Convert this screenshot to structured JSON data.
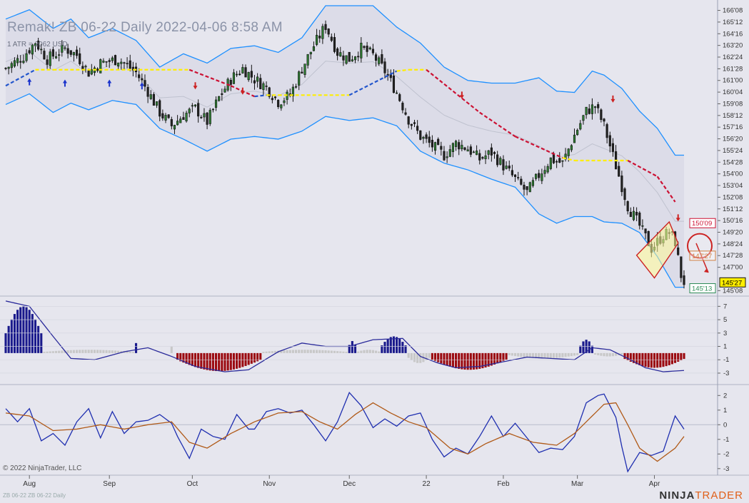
{
  "header": {
    "title": "Remak!  ZB 06-22  Daily  2022-04-06 8:58 AM",
    "subtitle": "1 ATR = 2062 USD"
  },
  "footer": {
    "copyright": "© 2022 NinjaTrader, LLC",
    "instrument_note": "ZB 06-22 ZB 06-22 Daily",
    "brand_prefix": "NINJA",
    "brand_suffix": "TRADER"
  },
  "colors": {
    "bull_candle": "#2e7d32",
    "bear_candle": "#222222",
    "band": "#1e90ff",
    "trend_up": "#2255cc",
    "trend_down": "#cc1133",
    "trend_flat": "#ffee00",
    "hist_blue": "#1a1a8c",
    "hist_red": "#9b0a10",
    "hist_gray": "#c8c8c8",
    "osc_blue": "#1f2fb0",
    "osc_brown": "#b05a18"
  },
  "chart_data": [
    {
      "type": "candlestick",
      "name": "price",
      "y_ticks": [
        "166'08",
        "165'12",
        "164'16",
        "163'20",
        "162'24",
        "161'28",
        "161'00",
        "160'04",
        "159'08",
        "158'12",
        "157'16",
        "156'20",
        "155'24",
        "154'28",
        "154'00",
        "153'04",
        "152'08",
        "151'12",
        "150'16",
        "149'20",
        "148'24",
        "147'28",
        "147'00",
        "145'08"
      ],
      "ylim": [
        145.0,
        166.6
      ],
      "x_ticks": [
        "Aug",
        "Sep",
        "Oct",
        "Nov",
        "Dec",
        "22",
        "Feb",
        "Mar",
        "Apr"
      ],
      "price_labels": {
        "last": "145'27",
        "high_mark": "150'09",
        "mid_mark": "147'27",
        "low_mark": "145'13"
      },
      "close_path": [
        [
          0,
          161.9
        ],
        [
          6,
          162.8
        ],
        [
          10,
          163.9
        ],
        [
          14,
          162.6
        ],
        [
          20,
          163.4
        ],
        [
          24,
          162.9
        ],
        [
          28,
          161.6
        ],
        [
          32,
          162.3
        ],
        [
          38,
          162.6
        ],
        [
          44,
          161.6
        ],
        [
          48,
          160.2
        ],
        [
          52,
          158.6
        ],
        [
          56,
          157.6
        ],
        [
          60,
          158.4
        ],
        [
          64,
          158.9
        ],
        [
          68,
          157.9
        ],
        [
          72,
          159.7
        ],
        [
          76,
          161.1
        ],
        [
          80,
          161.9
        ],
        [
          84,
          161.1
        ],
        [
          88,
          160.5
        ],
        [
          92,
          159.4
        ],
        [
          96,
          159.9
        ],
        [
          100,
          161.9
        ],
        [
          104,
          163.6
        ],
        [
          108,
          165.1
        ],
        [
          112,
          163.1
        ],
        [
          116,
          162.6
        ],
        [
          120,
          163.4
        ],
        [
          124,
          162.9
        ],
        [
          128,
          161.7
        ],
        [
          132,
          160.1
        ],
        [
          136,
          158.1
        ],
        [
          140,
          156.8
        ],
        [
          144,
          156.1
        ],
        [
          148,
          155.4
        ],
        [
          152,
          156.3
        ],
        [
          156,
          155.9
        ],
        [
          160,
          155.1
        ],
        [
          164,
          155.6
        ],
        [
          168,
          154.6
        ],
        [
          172,
          153.6
        ],
        [
          176,
          152.6
        ],
        [
          180,
          153.9
        ],
        [
          184,
          155.1
        ],
        [
          188,
          154.8
        ],
        [
          192,
          156.9
        ],
        [
          196,
          158.7
        ],
        [
          199,
          159.1
        ],
        [
          202,
          157.6
        ],
        [
          206,
          154.6
        ],
        [
          210,
          151.6
        ],
        [
          214,
          150.1
        ],
        [
          218,
          148.4
        ],
        [
          222,
          149.4
        ],
        [
          224,
          149.6
        ],
        [
          226,
          148.9
        ],
        [
          228,
          146.4
        ],
        [
          229,
          145.9
        ]
      ],
      "upper_band": [
        [
          0,
          165.6
        ],
        [
          8,
          166.3
        ],
        [
          16,
          164.9
        ],
        [
          22,
          165.6
        ],
        [
          28,
          164.2
        ],
        [
          36,
          164.9
        ],
        [
          44,
          164.0
        ],
        [
          52,
          162.0
        ],
        [
          60,
          163.0
        ],
        [
          68,
          162.3
        ],
        [
          76,
          163.4
        ],
        [
          84,
          163.6
        ],
        [
          92,
          163.1
        ],
        [
          100,
          164.2
        ],
        [
          108,
          166.6
        ],
        [
          116,
          166.6
        ],
        [
          124,
          166.6
        ],
        [
          132,
          165.0
        ],
        [
          140,
          163.8
        ],
        [
          148,
          162.0
        ],
        [
          156,
          161.0
        ],
        [
          164,
          160.8
        ],
        [
          172,
          160.8
        ],
        [
          180,
          161.2
        ],
        [
          186,
          160.2
        ],
        [
          192,
          160.1
        ],
        [
          198,
          161.7
        ],
        [
          202,
          161.4
        ],
        [
          208,
          160.4
        ],
        [
          214,
          158.7
        ],
        [
          220,
          157.4
        ],
        [
          226,
          155.4
        ]
      ],
      "lower_band": [
        [
          0,
          159.2
        ],
        [
          8,
          160.0
        ],
        [
          16,
          158.6
        ],
        [
          22,
          159.3
        ],
        [
          28,
          158.8
        ],
        [
          36,
          159.5
        ],
        [
          44,
          159.2
        ],
        [
          52,
          157.4
        ],
        [
          60,
          156.6
        ],
        [
          68,
          155.7
        ],
        [
          76,
          156.6
        ],
        [
          84,
          156.8
        ],
        [
          92,
          156.6
        ],
        [
          100,
          157.2
        ],
        [
          108,
          158.3
        ],
        [
          116,
          158.0
        ],
        [
          124,
          158.2
        ],
        [
          132,
          157.6
        ],
        [
          140,
          155.7
        ],
        [
          148,
          154.8
        ],
        [
          156,
          154.3
        ],
        [
          164,
          153.6
        ],
        [
          172,
          153.0
        ],
        [
          180,
          151.0
        ],
        [
          186,
          150.3
        ],
        [
          192,
          150.8
        ],
        [
          198,
          150.8
        ],
        [
          202,
          150.4
        ],
        [
          208,
          150.3
        ],
        [
          214,
          149.6
        ],
        [
          220,
          147.8
        ],
        [
          226,
          145.5
        ]
      ],
      "trend_line": [
        [
          0,
          160.6,
          "up"
        ],
        [
          10,
          161.8,
          "up"
        ],
        [
          16,
          161.8,
          "flat"
        ],
        [
          62,
          161.8,
          "flat"
        ],
        [
          62,
          161.8,
          "down"
        ],
        [
          76,
          160.6,
          "down"
        ],
        [
          84,
          159.8,
          "down"
        ],
        [
          88,
          159.9,
          "up"
        ],
        [
          92,
          159.9,
          "flat"
        ],
        [
          116,
          159.9,
          "flat"
        ],
        [
          116,
          159.9,
          "up"
        ],
        [
          132,
          161.7,
          "up"
        ],
        [
          136,
          161.8,
          "flat"
        ],
        [
          142,
          161.8,
          "flat"
        ],
        [
          142,
          161.8,
          "down"
        ],
        [
          160,
          158.6,
          "down"
        ],
        [
          172,
          156.8,
          "down"
        ],
        [
          188,
          155.2,
          "down"
        ],
        [
          192,
          155.0,
          "flat"
        ],
        [
          210,
          155.0,
          "flat"
        ],
        [
          210,
          155.0,
          "down"
        ],
        [
          220,
          153.8,
          "down"
        ],
        [
          226,
          151.9,
          "down"
        ]
      ]
    },
    {
      "type": "histogram",
      "name": "momentum",
      "y_ticks": [
        "7",
        "5",
        "3",
        "1",
        "-1",
        "-3"
      ],
      "ylim": [
        -4.5,
        8.0
      ],
      "segments": [
        {
          "start": 0,
          "end": 12,
          "peak": 7.0,
          "color": "blue"
        },
        {
          "start": 13,
          "end": 43,
          "peak": 0.5,
          "color": "gray"
        },
        {
          "start": 44,
          "end": 44,
          "peak": 1.5,
          "color": "blue"
        },
        {
          "start": 56,
          "end": 56,
          "peak": 1.0,
          "color": "gray"
        },
        {
          "start": 58,
          "end": 86,
          "peak": -2.7,
          "color": "red"
        },
        {
          "start": 87,
          "end": 115,
          "peak": 0.5,
          "color": "gray"
        },
        {
          "start": 116,
          "end": 118,
          "peak": 1.8,
          "color": "blue"
        },
        {
          "start": 119,
          "end": 126,
          "peak": 0.5,
          "color": "gray"
        },
        {
          "start": 127,
          "end": 135,
          "peak": 2.5,
          "color": "blue"
        },
        {
          "start": 136,
          "end": 143,
          "peak": -1.5,
          "color": "gray"
        },
        {
          "start": 144,
          "end": 169,
          "peak": -2.5,
          "color": "red"
        },
        {
          "start": 170,
          "end": 193,
          "peak": -0.8,
          "color": "gray"
        },
        {
          "start": 194,
          "end": 198,
          "peak": 2.0,
          "color": "blue"
        },
        {
          "start": 199,
          "end": 208,
          "peak": -0.5,
          "color": "gray"
        },
        {
          "start": 209,
          "end": 229,
          "peak": -2.2,
          "color": "red"
        }
      ],
      "line": [
        [
          0,
          7.8
        ],
        [
          8,
          7.0
        ],
        [
          16,
          2.5
        ],
        [
          22,
          -0.8
        ],
        [
          30,
          -1.0
        ],
        [
          40,
          0.2
        ],
        [
          48,
          0.8
        ],
        [
          56,
          -0.5
        ],
        [
          64,
          -2.0
        ],
        [
          74,
          -2.8
        ],
        [
          82,
          -2.5
        ],
        [
          92,
          0.2
        ],
        [
          100,
          1.5
        ],
        [
          108,
          1.0
        ],
        [
          116,
          1.0
        ],
        [
          124,
          2.0
        ],
        [
          134,
          2.2
        ],
        [
          140,
          -0.5
        ],
        [
          146,
          -1.5
        ],
        [
          152,
          -2.2
        ],
        [
          160,
          -2.0
        ],
        [
          168,
          -1.3
        ],
        [
          176,
          -0.6
        ],
        [
          184,
          -0.8
        ],
        [
          192,
          -1.0
        ],
        [
          198,
          0.8
        ],
        [
          204,
          0.5
        ],
        [
          210,
          -0.8
        ],
        [
          216,
          -2.2
        ],
        [
          222,
          -2.8
        ],
        [
          229,
          -2.6
        ]
      ]
    },
    {
      "type": "line",
      "name": "oscillator",
      "y_ticks": [
        "2",
        "1",
        "0",
        "-1",
        "-2",
        "-3"
      ],
      "ylim": [
        -3.4,
        2.6
      ],
      "series": [
        {
          "color": "blue",
          "values": [
            [
              0,
              1.1
            ],
            [
              4,
              0.2
            ],
            [
              8,
              1.1
            ],
            [
              12,
              -1.1
            ],
            [
              16,
              -0.6
            ],
            [
              20,
              -1.4
            ],
            [
              24,
              0.2
            ],
            [
              28,
              1.1
            ],
            [
              32,
              -0.9
            ],
            [
              36,
              0.9
            ],
            [
              40,
              -0.6
            ],
            [
              44,
              0.2
            ],
            [
              48,
              0.3
            ],
            [
              52,
              0.7
            ],
            [
              56,
              0.1
            ],
            [
              58,
              -0.8
            ],
            [
              62,
              -2.3
            ],
            [
              66,
              -0.3
            ],
            [
              70,
              -0.8
            ],
            [
              74,
              -1.0
            ],
            [
              78,
              0.7
            ],
            [
              82,
              -0.3
            ],
            [
              84,
              -0.3
            ],
            [
              88,
              0.9
            ],
            [
              92,
              1.1
            ],
            [
              96,
              0.8
            ],
            [
              100,
              1.0
            ],
            [
              104,
              0.0
            ],
            [
              108,
              -1.1
            ],
            [
              112,
              0.2
            ],
            [
              116,
              2.2
            ],
            [
              120,
              1.3
            ],
            [
              124,
              -0.2
            ],
            [
              128,
              0.4
            ],
            [
              132,
              -0.1
            ],
            [
              136,
              0.6
            ],
            [
              140,
              0.8
            ],
            [
              144,
              -1.0
            ],
            [
              148,
              -2.2
            ],
            [
              152,
              -1.6
            ],
            [
              156,
              -2.0
            ],
            [
              160,
              -0.8
            ],
            [
              164,
              0.6
            ],
            [
              168,
              -0.8
            ],
            [
              172,
              0.1
            ],
            [
              176,
              -0.9
            ],
            [
              180,
              -1.9
            ],
            [
              184,
              -1.6
            ],
            [
              188,
              -1.7
            ],
            [
              192,
              -0.8
            ],
            [
              196,
              1.5
            ],
            [
              200,
              2.0
            ],
            [
              202,
              2.1
            ],
            [
              206,
              0.5
            ],
            [
              208,
              -1.5
            ],
            [
              210,
              -3.2
            ],
            [
              214,
              -1.9
            ],
            [
              218,
              -2.1
            ],
            [
              222,
              -1.8
            ],
            [
              226,
              0.6
            ],
            [
              229,
              -0.3
            ]
          ]
        },
        {
          "color": "brown",
          "values": [
            [
              0,
              0.8
            ],
            [
              8,
              0.6
            ],
            [
              16,
              -0.4
            ],
            [
              24,
              -0.3
            ],
            [
              32,
              0.0
            ],
            [
              40,
              -0.3
            ],
            [
              48,
              0.0
            ],
            [
              56,
              0.2
            ],
            [
              62,
              -1.2
            ],
            [
              68,
              -1.6
            ],
            [
              76,
              -0.6
            ],
            [
              84,
              0.2
            ],
            [
              92,
              0.8
            ],
            [
              100,
              0.9
            ],
            [
              106,
              0.2
            ],
            [
              112,
              -0.3
            ],
            [
              118,
              0.7
            ],
            [
              124,
              1.5
            ],
            [
              130,
              0.8
            ],
            [
              136,
              0.2
            ],
            [
              142,
              -0.2
            ],
            [
              150,
              -1.6
            ],
            [
              156,
              -2.0
            ],
            [
              162,
              -1.3
            ],
            [
              170,
              -0.6
            ],
            [
              178,
              -1.2
            ],
            [
              186,
              -1.4
            ],
            [
              192,
              -0.6
            ],
            [
              198,
              0.6
            ],
            [
              202,
              1.4
            ],
            [
              206,
              1.5
            ],
            [
              210,
              0.0
            ],
            [
              214,
              -1.6
            ],
            [
              220,
              -2.5
            ],
            [
              226,
              -1.6
            ],
            [
              229,
              -0.8
            ]
          ]
        }
      ]
    }
  ]
}
